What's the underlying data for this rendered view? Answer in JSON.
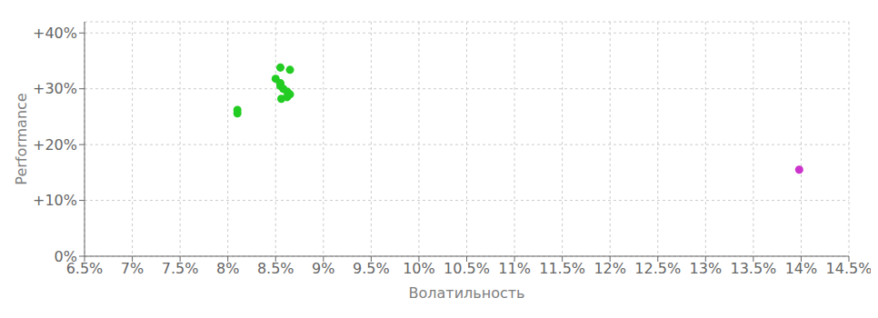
{
  "chart_data": {
    "type": "scatter",
    "xlabel": "Волатильность",
    "ylabel": "Performance",
    "xlim": [
      0.065,
      0.145
    ],
    "ylim": [
      0.0,
      0.42
    ],
    "xticks": [
      {
        "value": 0.065,
        "label": "6.5%"
      },
      {
        "value": 0.07,
        "label": "7%"
      },
      {
        "value": 0.075,
        "label": "7.5%"
      },
      {
        "value": 0.08,
        "label": "8%"
      },
      {
        "value": 0.085,
        "label": "8.5%"
      },
      {
        "value": 0.09,
        "label": "9%"
      },
      {
        "value": 0.095,
        "label": "9.5%"
      },
      {
        "value": 0.1,
        "label": "10%"
      },
      {
        "value": 0.105,
        "label": "10.5%"
      },
      {
        "value": 0.11,
        "label": "11%"
      },
      {
        "value": 0.115,
        "label": "11.5%"
      },
      {
        "value": 0.12,
        "label": "12%"
      },
      {
        "value": 0.125,
        "label": "12.5%"
      },
      {
        "value": 0.13,
        "label": "13%"
      },
      {
        "value": 0.135,
        "label": "13.5%"
      },
      {
        "value": 0.14,
        "label": "14%"
      },
      {
        "value": 0.145,
        "label": "14.5%"
      }
    ],
    "yticks": [
      {
        "value": 0.0,
        "label": "0%"
      },
      {
        "value": 0.1,
        "label": "+10%"
      },
      {
        "value": 0.2,
        "label": "+20%"
      },
      {
        "value": 0.3,
        "label": "+30%"
      },
      {
        "value": 0.4,
        "label": "+40%"
      }
    ],
    "grid": true,
    "series": [
      {
        "color": "#22cc22",
        "x": [
          0.0855,
          0.0865,
          0.085,
          0.0855,
          0.0855,
          0.0858,
          0.0862,
          0.0865,
          0.0862,
          0.0856,
          0.081,
          0.081
        ],
        "y": [
          0.338,
          0.334,
          0.318,
          0.31,
          0.305,
          0.3,
          0.295,
          0.29,
          0.285,
          0.282,
          0.262,
          0.256
        ]
      },
      {
        "color": "#cc33cc",
        "x": [
          0.1398
        ],
        "y": [
          0.155
        ]
      }
    ]
  }
}
